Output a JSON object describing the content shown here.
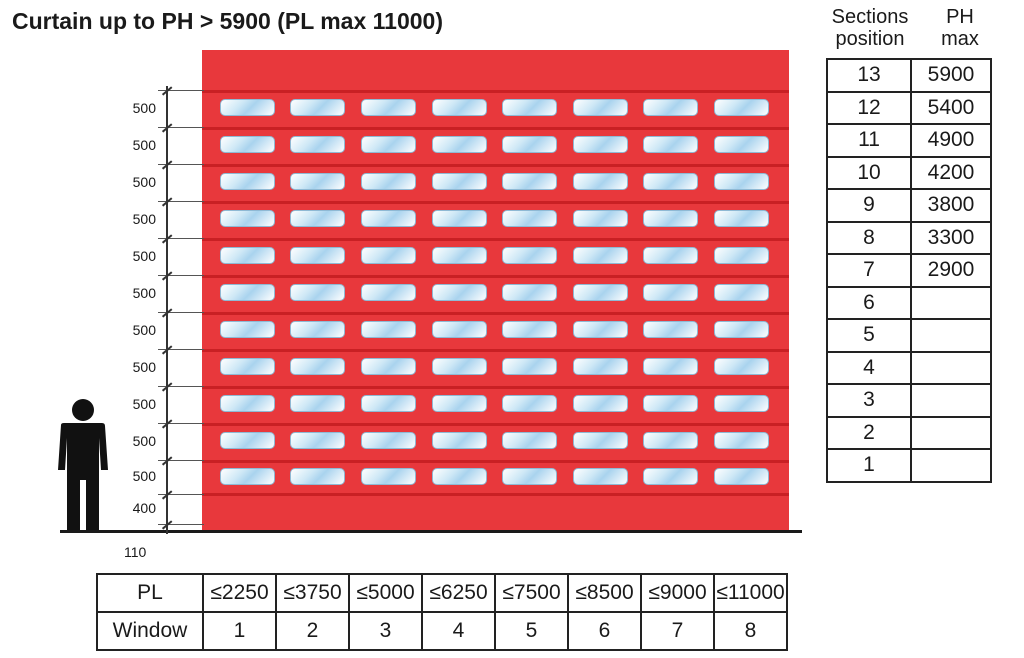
{
  "title": "Curtain up to PH > 5900 (PL max 11000)",
  "colors": {
    "curtain": "#e8383c",
    "panel_line": "#c92024",
    "window_glass": "#cfe8f6"
  },
  "dimensions": {
    "sections": [
      "500",
      "500",
      "500",
      "500",
      "500",
      "500",
      "500",
      "500",
      "500",
      "500",
      "500",
      "400"
    ],
    "bottom": "110"
  },
  "person_icon": "person-icon",
  "sections_table": {
    "header_sections": "Sections position",
    "header_sections_line1": "Sections",
    "header_sections_line2": "position",
    "header_ph": "PH max",
    "header_ph_line1": "PH",
    "header_ph_line2": "max",
    "rows": [
      {
        "section": "13",
        "ph": "5900"
      },
      {
        "section": "12",
        "ph": "5400"
      },
      {
        "section": "11",
        "ph": "4900"
      },
      {
        "section": "10",
        "ph": "4200"
      },
      {
        "section": "9",
        "ph": "3800"
      },
      {
        "section": "8",
        "ph": "3300"
      },
      {
        "section": "7",
        "ph": "2900"
      },
      {
        "section": "6",
        "ph": ""
      },
      {
        "section": "5",
        "ph": ""
      },
      {
        "section": "4",
        "ph": ""
      },
      {
        "section": "3",
        "ph": ""
      },
      {
        "section": "2",
        "ph": ""
      },
      {
        "section": "1",
        "ph": ""
      }
    ]
  },
  "pl_table": {
    "row1_label": "PL",
    "row2_label": "Window",
    "pl_values": [
      "≤2250",
      "≤3750",
      "≤5000",
      "≤6250",
      "≤7500",
      "≤8500",
      "≤9000",
      "≤11000"
    ],
    "window_values": [
      "1",
      "2",
      "3",
      "4",
      "5",
      "6",
      "7",
      "8"
    ]
  }
}
